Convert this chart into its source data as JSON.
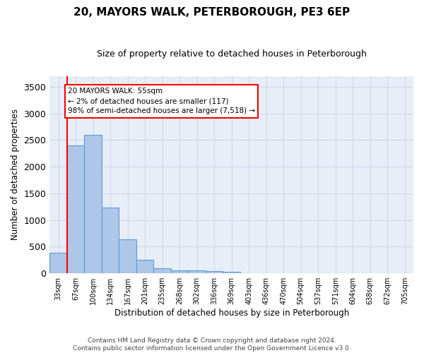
{
  "title": "20, MAYORS WALK, PETERBOROUGH, PE3 6EP",
  "subtitle": "Size of property relative to detached houses in Peterborough",
  "xlabel": "Distribution of detached houses by size in Peterborough",
  "ylabel": "Number of detached properties",
  "categories": [
    "33sqm",
    "67sqm",
    "100sqm",
    "134sqm",
    "167sqm",
    "201sqm",
    "235sqm",
    "268sqm",
    "302sqm",
    "336sqm",
    "369sqm",
    "403sqm",
    "436sqm",
    "470sqm",
    "504sqm",
    "537sqm",
    "571sqm",
    "604sqm",
    "638sqm",
    "672sqm",
    "705sqm"
  ],
  "bar_values": [
    390,
    2400,
    2600,
    1240,
    640,
    260,
    100,
    60,
    60,
    45,
    30,
    0,
    0,
    0,
    0,
    0,
    0,
    0,
    0,
    0,
    0
  ],
  "bar_color": "#aec6e8",
  "bar_edge_color": "#5b9bd5",
  "grid_color": "#d0d8e8",
  "background_color": "#e8eef8",
  "annotation_text": "20 MAYORS WALK: 55sqm\n← 2% of detached houses are smaller (117)\n98% of semi-detached houses are larger (7,518) →",
  "footer_line1": "Contains HM Land Registry data © Crown copyright and database right 2024.",
  "footer_line2": "Contains public sector information licensed under the Open Government Licence v3.0.",
  "ylim": [
    0,
    3700
  ],
  "yticks": [
    0,
    500,
    1000,
    1500,
    2000,
    2500,
    3000,
    3500
  ]
}
